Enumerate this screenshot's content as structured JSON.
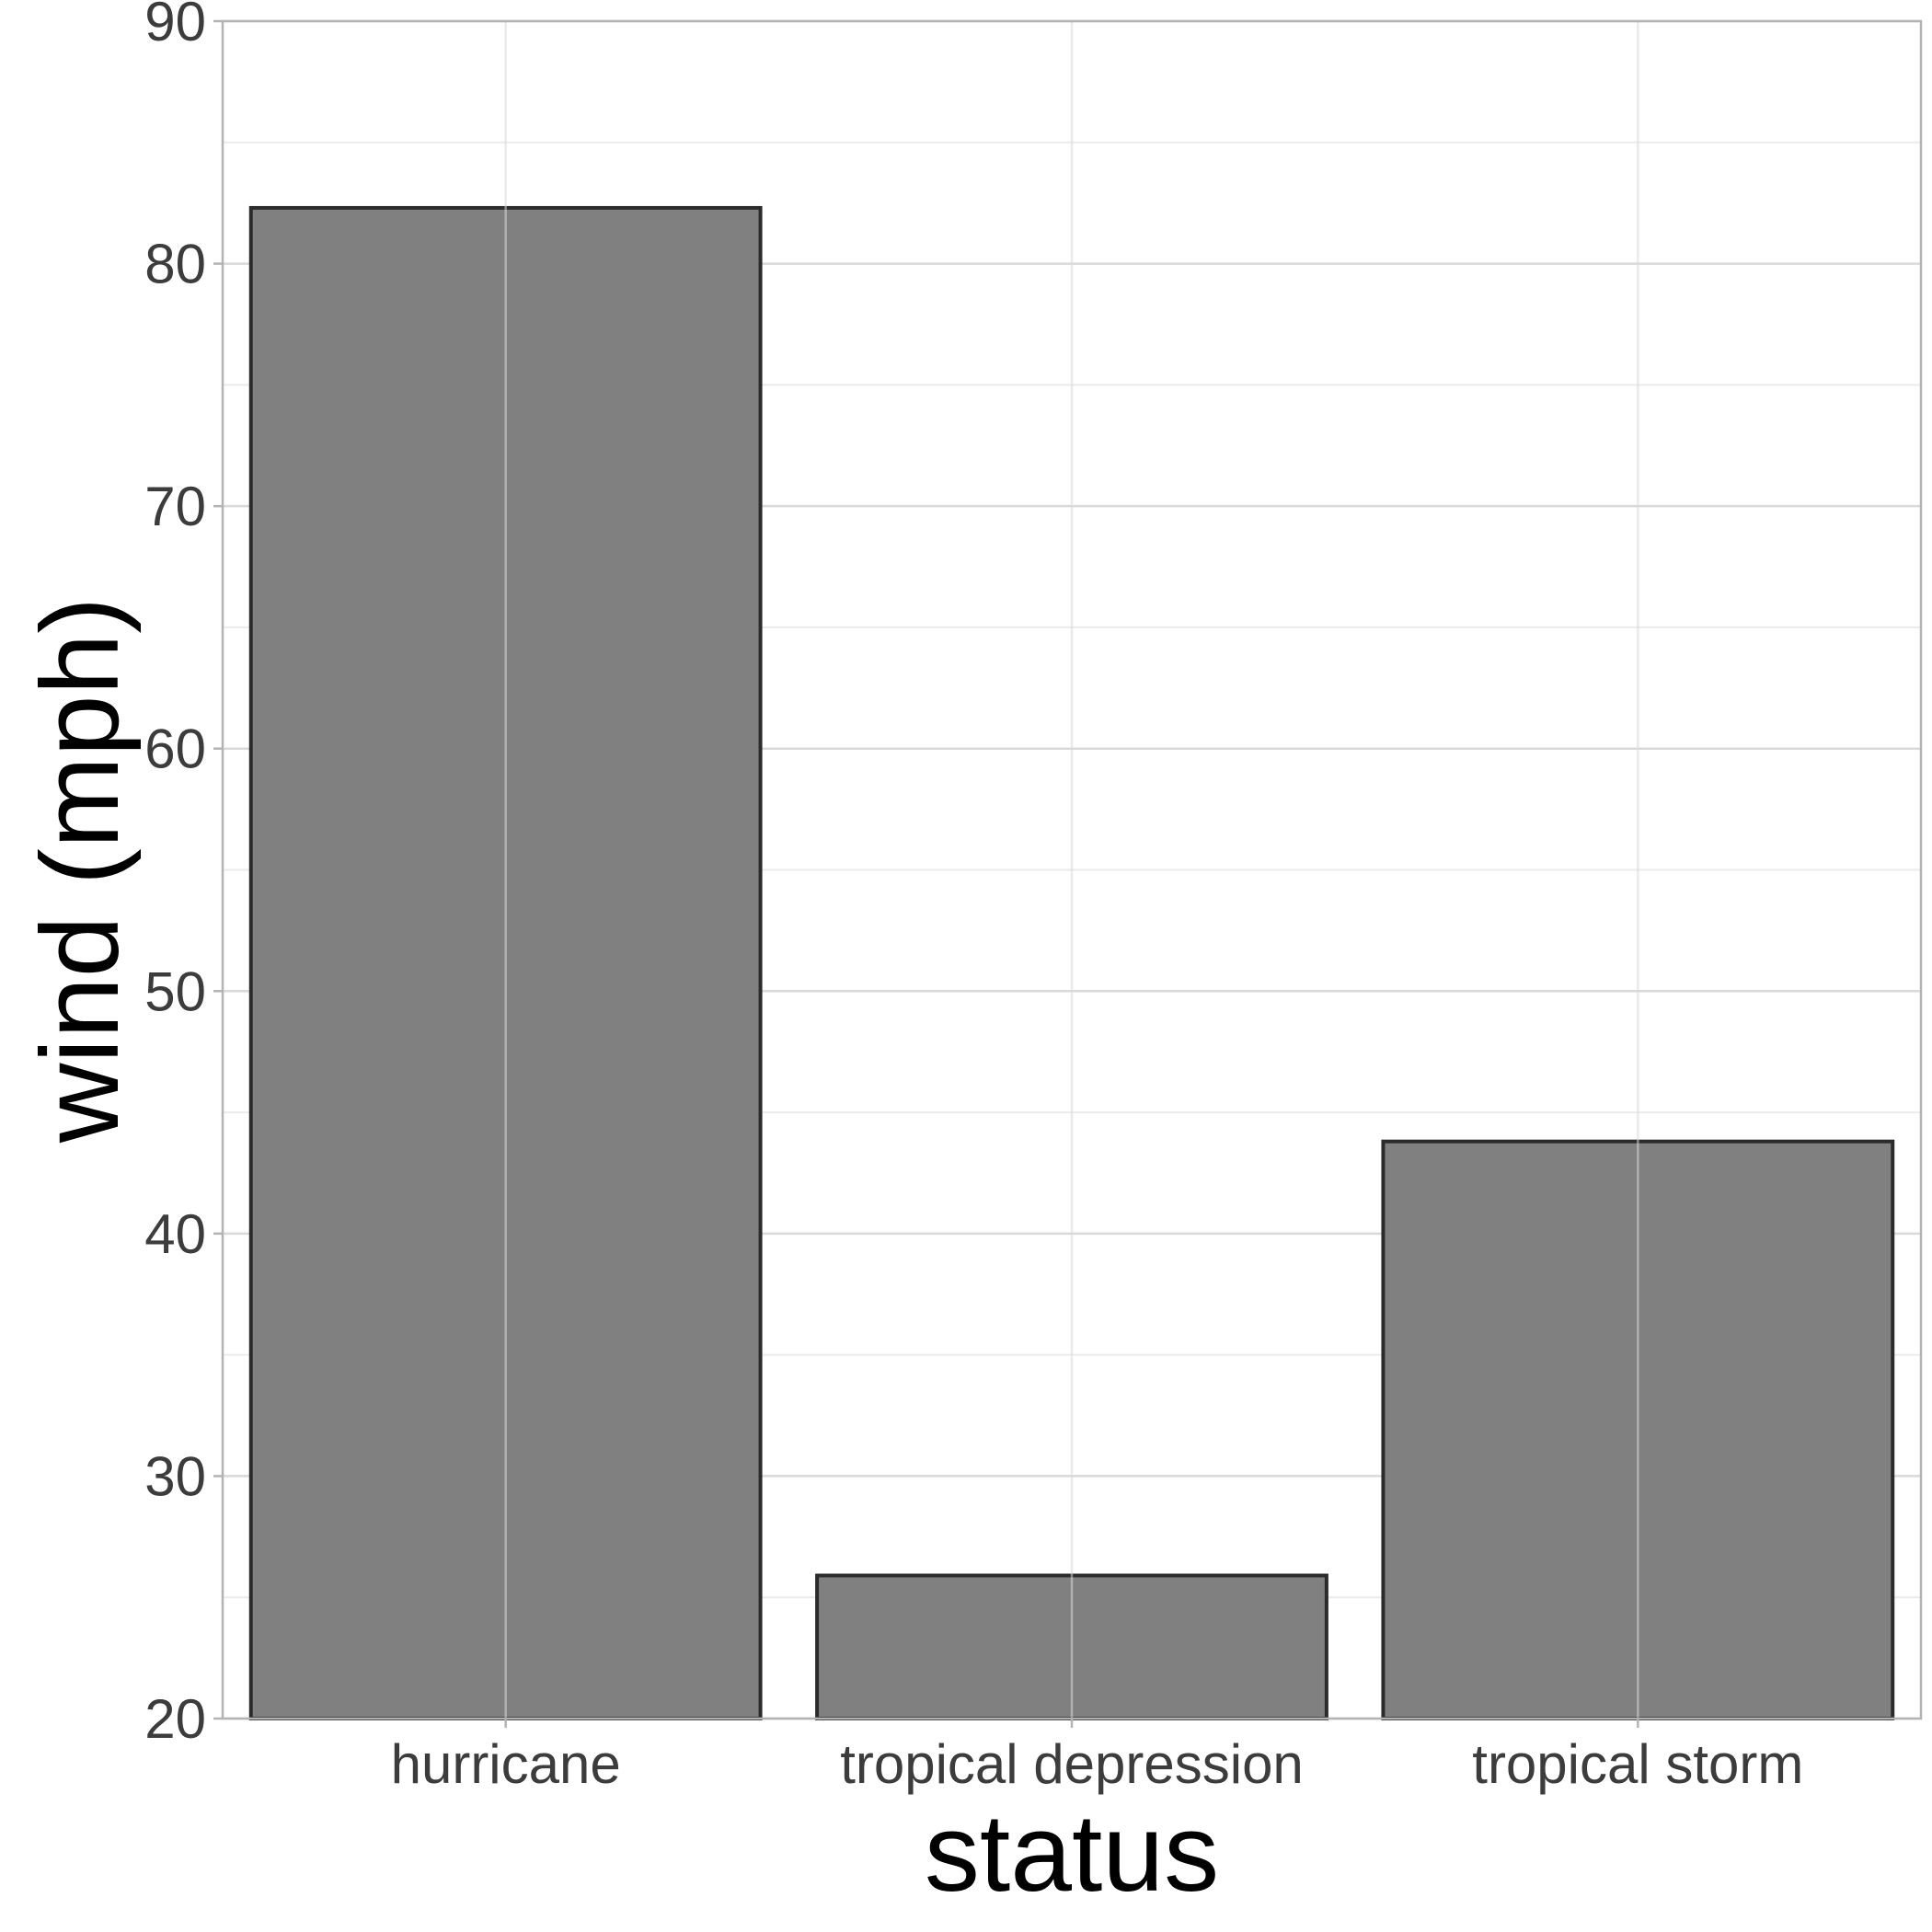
{
  "chart_data": {
    "type": "bar",
    "categories": [
      "hurricane",
      "tropical depression",
      "tropical storm"
    ],
    "values": [
      82.3,
      25.9,
      43.8
    ],
    "xlabel": "status",
    "ylabel": "wind (mph)",
    "ylim": [
      20,
      90
    ],
    "yticks": [
      20,
      30,
      40,
      50,
      60,
      70,
      80,
      90
    ],
    "grid": true,
    "legend": "none",
    "colors": {
      "bar_fill": "#808080",
      "bar_outline": "#2b2b2b",
      "grid_major": "#d9d9d9",
      "grid_minor": "#ebebeb",
      "panel_border": "#b3b3b3",
      "tick_text": "#3c3c3c",
      "title_text": "#000000"
    }
  }
}
